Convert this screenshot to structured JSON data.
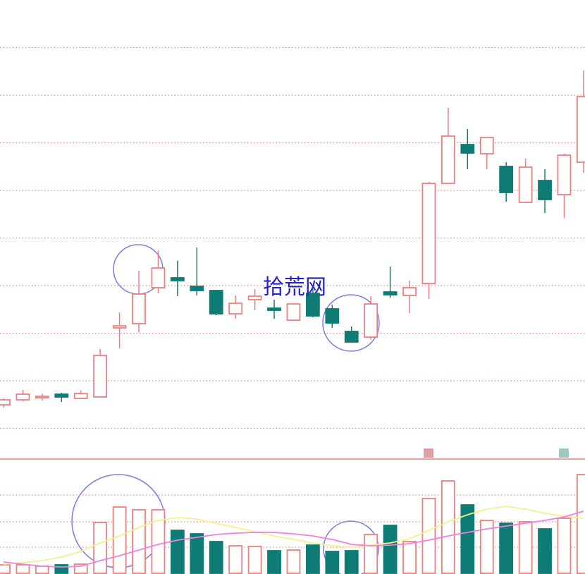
{
  "chart_data": [
    {
      "type": "candlestick",
      "annotation": "拾荒网",
      "open": [
        101,
        108,
        111,
        116,
        110,
        112,
        210,
        216,
        267,
        281,
        269,
        263,
        230,
        250,
        238,
        221,
        259,
        237,
        205,
        197,
        261,
        256,
        273,
        415,
        470,
        457,
        439,
        388,
        419,
        399,
        445
      ],
      "high": [
        110,
        122,
        117,
        118,
        121,
        180,
        232,
        291,
        320,
        305,
        324,
        263,
        256,
        265,
        250,
        244,
        265,
        243,
        212,
        255,
        297,
        277,
        417,
        522,
        492,
        480,
        445,
        450,
        435,
        457,
        575
      ],
      "low": [
        97,
        106,
        107,
        105,
        109,
        112,
        181,
        204,
        259,
        255,
        256,
        228,
        223,
        235,
        223,
        221,
        225,
        210,
        190,
        193,
        253,
        231,
        251,
        415,
        435,
        435,
        389,
        388,
        373,
        366,
        430
      ],
      "close": [
        108,
        116,
        113,
        112,
        117,
        171,
        213,
        258,
        295,
        277,
        263,
        230,
        245,
        255,
        235,
        244,
        227,
        217,
        190,
        244,
        257,
        267,
        415,
        482,
        458,
        480,
        402,
        438,
        392,
        455,
        538
      ],
      "up_color": "#ec7f80",
      "down_color": "#0e7c75",
      "ylim": [
        25,
        675
      ],
      "yticks": [
        67.5,
        135,
        202.5,
        270,
        337.5,
        405,
        472.5,
        540,
        607.5
      ],
      "grid": true
    },
    {
      "type": "bar",
      "values": [
        12,
        12,
        10,
        12,
        13,
        72,
        94,
        90,
        90,
        61,
        56,
        45,
        39,
        38,
        32,
        33,
        40,
        31,
        32,
        55,
        68,
        45,
        106,
        131,
        97,
        75,
        71,
        73,
        63,
        78,
        140
      ],
      "series": [
        {
          "color": "#f5f08a",
          "values": [
            13,
            15,
            18,
            23,
            31,
            43,
            53,
            65,
            75,
            79,
            77,
            71,
            65,
            59,
            53,
            48,
            43,
            39,
            37,
            40,
            43,
            49,
            61,
            73,
            83,
            91,
            95,
            91,
            85,
            81,
            78
          ]
        },
        {
          "color": "#ee80e0",
          "values": [
            16,
            13,
            10,
            9,
            10,
            18,
            25,
            33,
            41,
            47,
            51,
            55,
            57,
            58,
            58,
            56,
            53,
            48,
            41,
            39,
            40,
            42,
            47,
            53,
            58,
            63,
            67,
            71,
            75,
            80,
            88
          ]
        }
      ],
      "ylim": [
        0,
        160
      ],
      "yticks": [
        37,
        73,
        111
      ],
      "grid": true
    }
  ]
}
